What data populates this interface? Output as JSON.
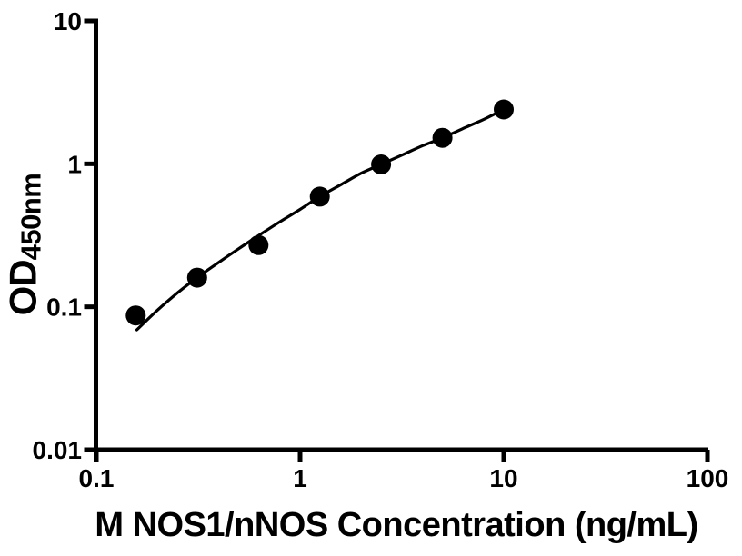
{
  "figure": {
    "background": "#ffffff",
    "ink": "#000000"
  },
  "chart_data": {
    "type": "scatter",
    "title": "",
    "xlabel": "M NOS1/nNOS Concentration (ng/mL)",
    "ylabel_base": "OD",
    "ylabel_sub": "450nm",
    "x_scale": "log10",
    "y_scale": "log10",
    "xlim": [
      0.1,
      100
    ],
    "ylim": [
      0.01,
      10
    ],
    "x_ticks": [
      0.1,
      1,
      10,
      100
    ],
    "x_tick_labels": [
      "0.1",
      "1",
      "10",
      "100"
    ],
    "y_ticks": [
      0.01,
      0.1,
      1,
      10
    ],
    "y_tick_labels": [
      "0.01",
      "0.1",
      "1",
      "10"
    ],
    "grid": false,
    "legend": null,
    "series": [
      {
        "name": "standard-points",
        "type": "scatter",
        "marker": "filled-circle",
        "color": "#000000",
        "x": [
          0.156,
          0.3125,
          0.625,
          1.25,
          2.5,
          5,
          10
        ],
        "y": [
          0.087,
          0.16,
          0.27,
          0.59,
          0.99,
          1.52,
          2.4
        ]
      },
      {
        "name": "fit-curve",
        "type": "line",
        "color": "#000000",
        "points": [
          [
            0.158,
            0.069
          ],
          [
            0.2,
            0.095
          ],
          [
            0.25,
            0.125
          ],
          [
            0.3125,
            0.16
          ],
          [
            0.4,
            0.205
          ],
          [
            0.5,
            0.255
          ],
          [
            0.625,
            0.315
          ],
          [
            0.8,
            0.395
          ],
          [
            1.0,
            0.48
          ],
          [
            1.25,
            0.59
          ],
          [
            1.6,
            0.72
          ],
          [
            2.0,
            0.86
          ],
          [
            2.5,
            0.99
          ],
          [
            3.2,
            1.16
          ],
          [
            4.0,
            1.34
          ],
          [
            5.0,
            1.52
          ],
          [
            6.5,
            1.8
          ],
          [
            8.0,
            2.05
          ],
          [
            10.0,
            2.4
          ]
        ]
      }
    ]
  }
}
